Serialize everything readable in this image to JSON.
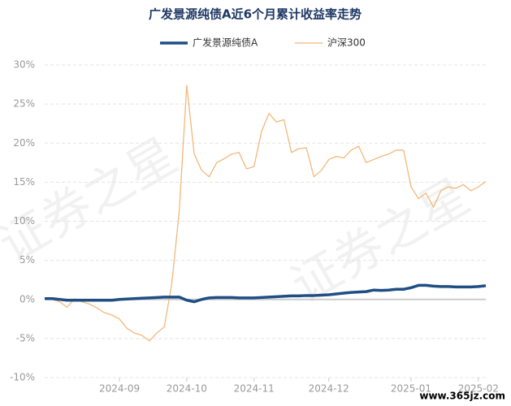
{
  "chart_data": {
    "type": "line",
    "title": "广发景源纯债A近6个月累计收益率走势",
    "categories": [
      null,
      null,
      null,
      null,
      null,
      null,
      null,
      null,
      null,
      null,
      "2024-09",
      null,
      null,
      null,
      null,
      null,
      null,
      null,
      null,
      "2024-10",
      null,
      null,
      null,
      null,
      null,
      null,
      null,
      null,
      "2024-11",
      null,
      null,
      null,
      null,
      null,
      null,
      null,
      null,
      null,
      "2024-12",
      null,
      null,
      null,
      null,
      null,
      null,
      null,
      null,
      null,
      null,
      "2025-01",
      null,
      null,
      null,
      null,
      null,
      null,
      null,
      null,
      "2025-02",
      null
    ],
    "series": [
      {
        "name": "广发景源纯债A",
        "color": "#1f4e85",
        "width": 3.5,
        "values": [
          0.1,
          0.1,
          0,
          -0.1,
          -0.1,
          -0.1,
          -0.1,
          -0.1,
          -0.1,
          -0.1,
          0,
          0.05,
          0.1,
          0.15,
          0.2,
          0.25,
          0.3,
          0.3,
          0.3,
          -0.1,
          -0.3,
          0,
          0.2,
          0.25,
          0.25,
          0.25,
          0.2,
          0.2,
          0.2,
          0.25,
          0.3,
          0.35,
          0.4,
          0.45,
          0.45,
          0.5,
          0.5,
          0.55,
          0.6,
          0.7,
          0.8,
          0.9,
          0.95,
          1.0,
          1.2,
          1.15,
          1.2,
          1.3,
          1.3,
          1.5,
          1.8,
          1.8,
          1.7,
          1.65,
          1.65,
          1.6,
          1.6,
          1.6,
          1.65,
          1.75
        ]
      },
      {
        "name": "沪深300",
        "color": "#f2b87a",
        "width": 1.3,
        "values": [
          0,
          0,
          -0.3,
          -1,
          0.1,
          -0.3,
          -0.6,
          -1.1,
          -1.7,
          -2,
          -2.5,
          -3.7,
          -4.3,
          -4.6,
          -5.3,
          -4.3,
          -3.5,
          2,
          11.3,
          27.4,
          18.6,
          16.5,
          15.7,
          17.5,
          18,
          18.6,
          18.8,
          16.7,
          17,
          21.5,
          23.8,
          22.7,
          23,
          18.8,
          19.3,
          19.4,
          15.7,
          16.5,
          17.9,
          18.3,
          18.1,
          19.1,
          19.6,
          17.5,
          17.9,
          18.3,
          18.6,
          19.1,
          19.1,
          14.4,
          12.9,
          13.6,
          11.8,
          13.9,
          14.4,
          14.2,
          14.7,
          13.9,
          14.4,
          15.1
        ]
      }
    ],
    "ylim": [
      -10,
      30
    ],
    "yticks": [
      {
        "value": -10,
        "label": "-10%"
      },
      {
        "value": -5,
        "label": "-5%"
      },
      {
        "value": 0,
        "label": "0%"
      },
      {
        "value": 5,
        "label": "5%"
      },
      {
        "value": 10,
        "label": "10%"
      },
      {
        "value": 15,
        "label": "15%"
      },
      {
        "value": 20,
        "label": "20%"
      },
      {
        "value": 25,
        "label": "25%"
      },
      {
        "value": 30,
        "label": "30%"
      }
    ],
    "grid": true
  },
  "watermark": "证券之星",
  "footer": "www.365jz.com"
}
